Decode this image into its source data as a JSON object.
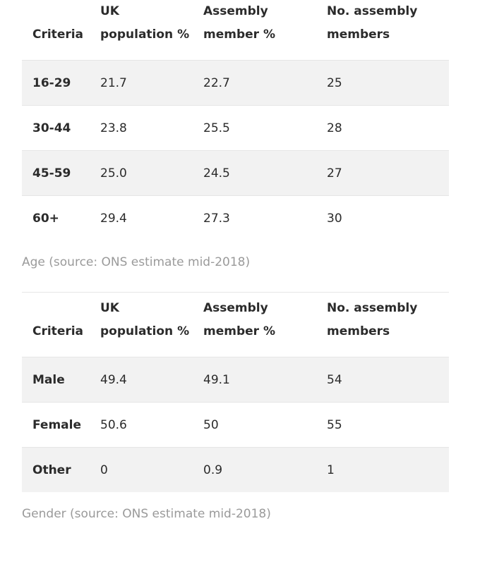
{
  "headers": {
    "criteria": "Criteria",
    "uk_population": "UK population %",
    "assembly_member": "Assembly member %",
    "no_members": "No. assembly members"
  },
  "age_table": {
    "rows": [
      {
        "criteria": "16-29",
        "uk": "21.7",
        "assembly": "22.7",
        "members": "25"
      },
      {
        "criteria": "30-44",
        "uk": "23.8",
        "assembly": "25.5",
        "members": "28"
      },
      {
        "criteria": "45-59",
        "uk": "25.0",
        "assembly": "24.5",
        "members": "27"
      },
      {
        "criteria": "60+",
        "uk": "29.4",
        "assembly": "27.3",
        "members": "30"
      }
    ],
    "caption": "Age (source: ONS estimate mid-2018)"
  },
  "gender_table": {
    "rows": [
      {
        "criteria": "Male",
        "uk": "49.4",
        "assembly": "49.1",
        "members": "54"
      },
      {
        "criteria": "Female",
        "uk": "50.6",
        "assembly": "50",
        "members": "55"
      },
      {
        "criteria": "Other",
        "uk": "0",
        "assembly": "0.9",
        "members": "1"
      }
    ],
    "caption": "Gender (source: ONS estimate mid-2018)"
  },
  "colors": {
    "row_shade": "#f2f2f2",
    "caption_text": "#9a9a9a",
    "border": "#e6e6e6"
  }
}
